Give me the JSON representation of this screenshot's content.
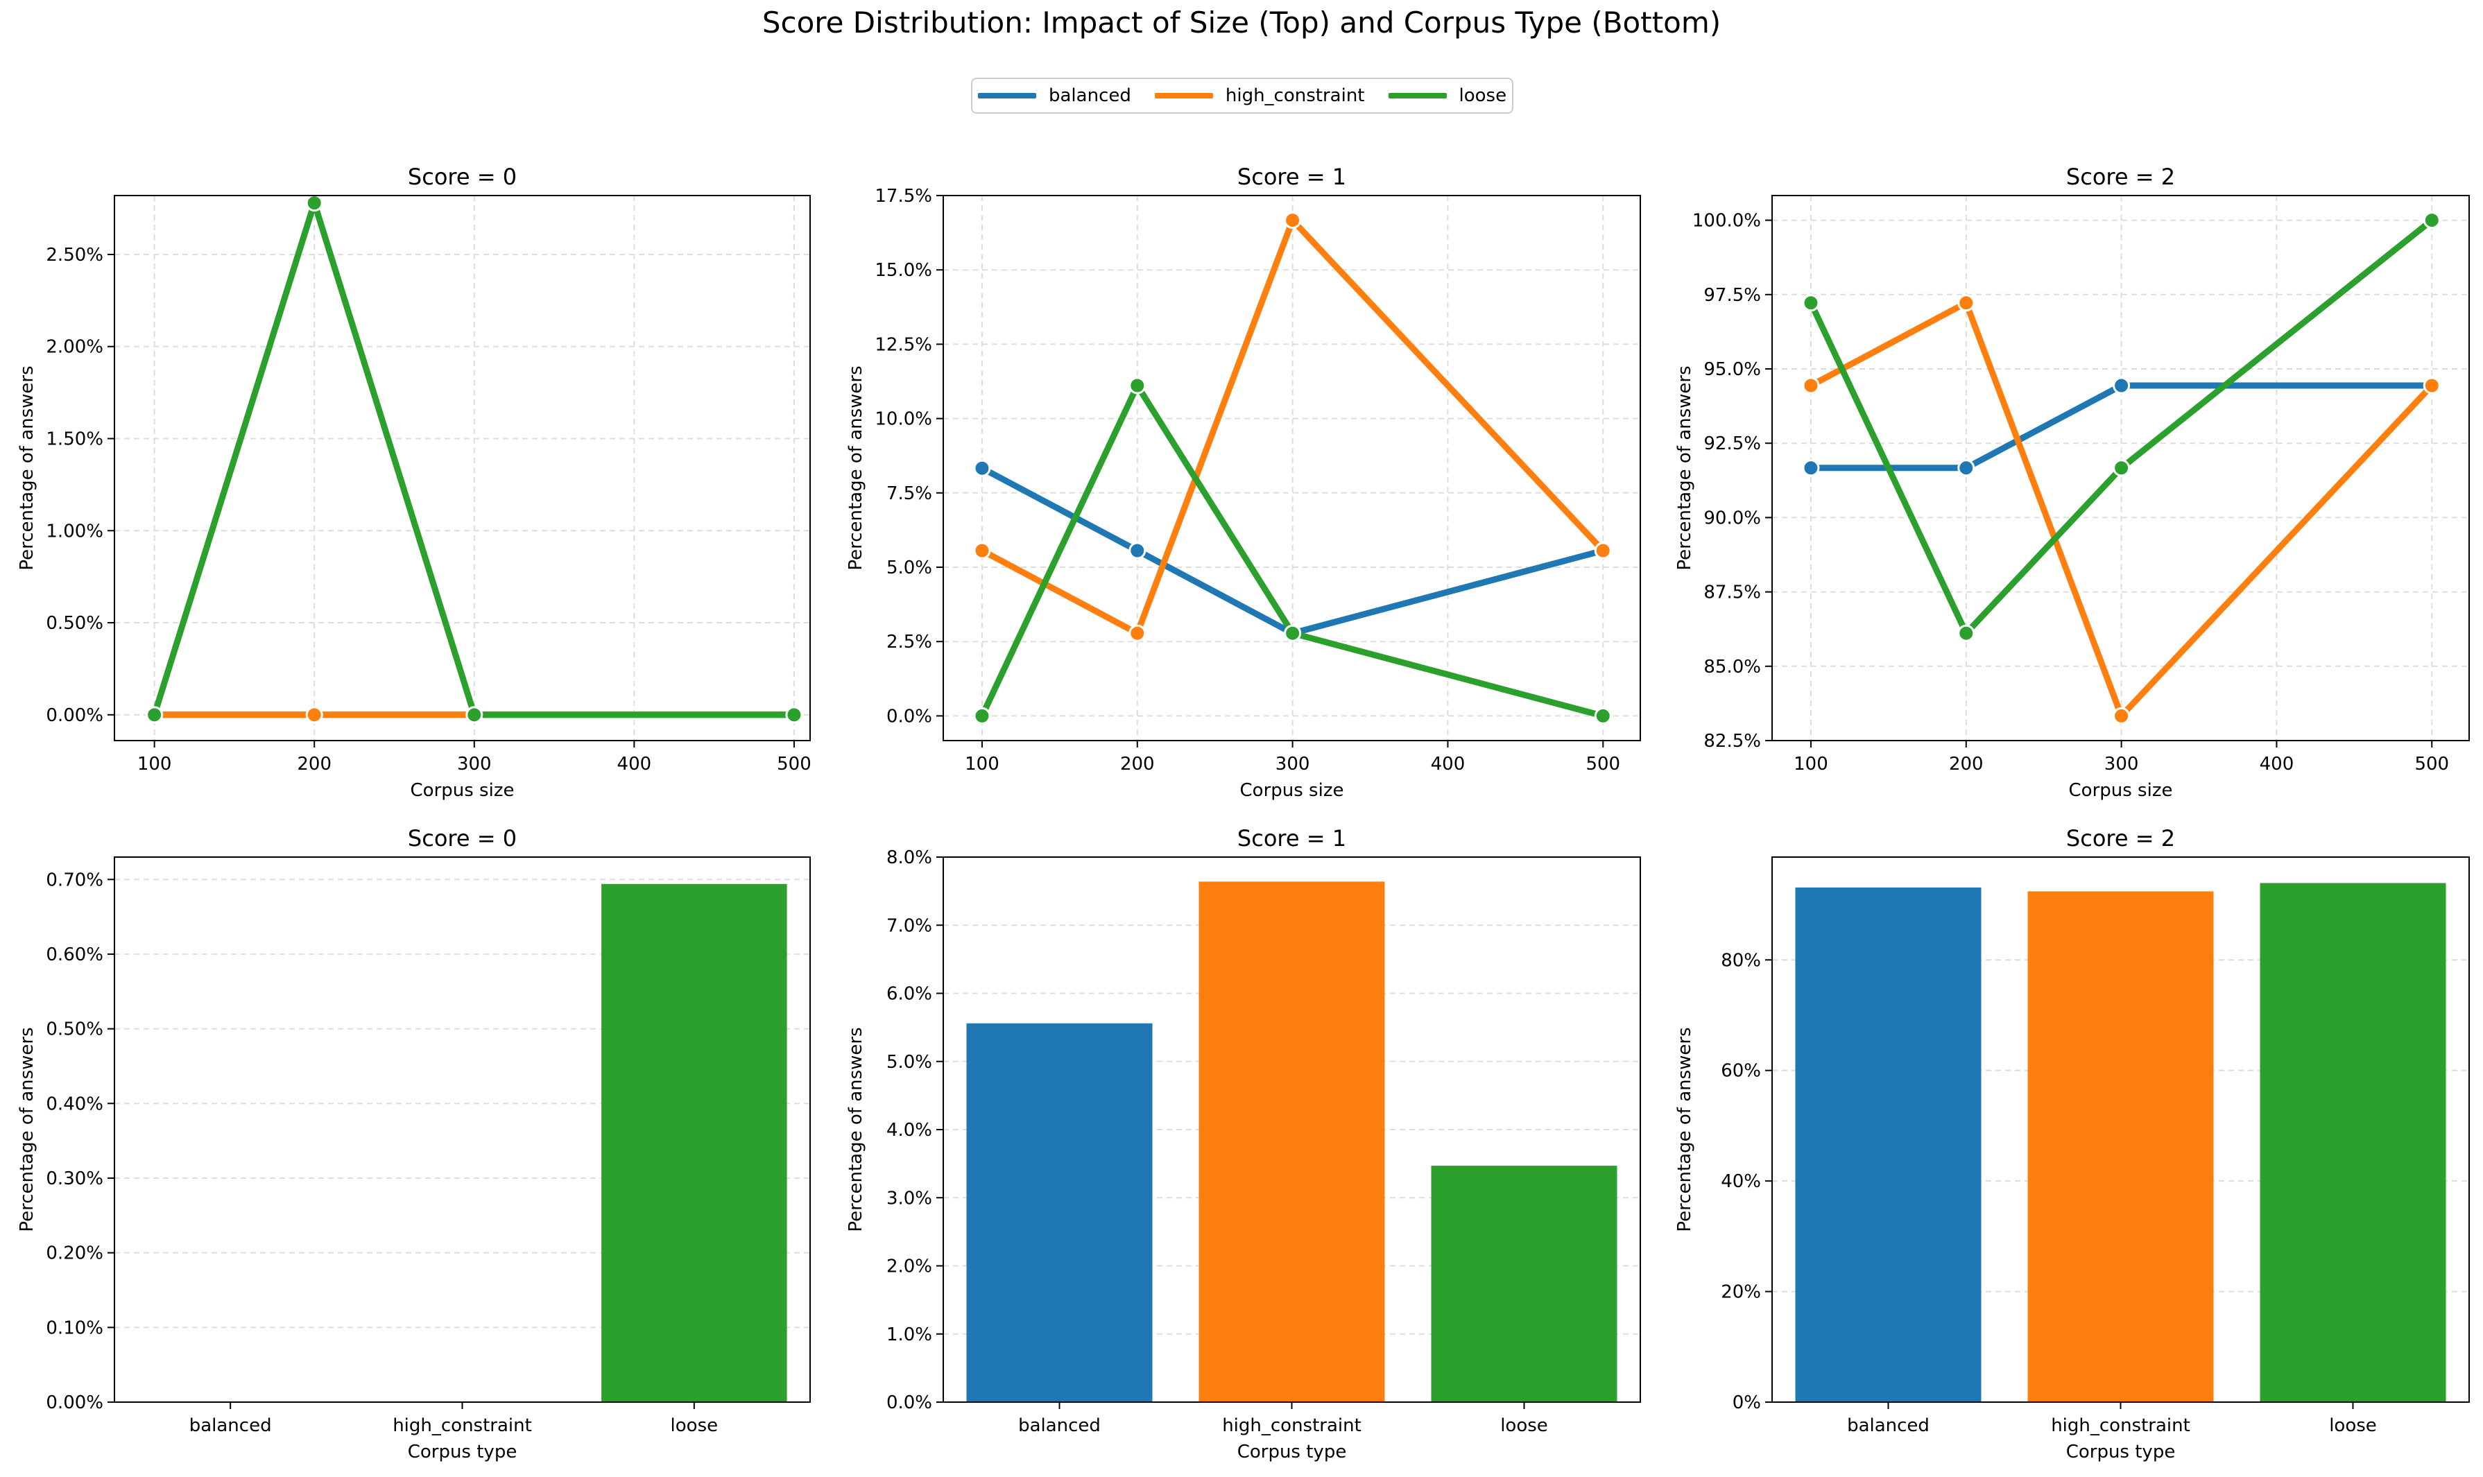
{
  "suptitle": "Score Distribution: Impact of Size (Top) and Corpus Type (Bottom)",
  "legend": [
    {
      "name": "balanced",
      "color": "#1f77b4"
    },
    {
      "name": "high_constraint",
      "color": "#ff7f0e"
    },
    {
      "name": "loose",
      "color": "#2ca02c"
    }
  ],
  "chart_data": [
    {
      "type": "line",
      "title": "Score = 0",
      "xlabel": "Corpus size",
      "ylabel": "Percentage of answers",
      "x": [
        100,
        200,
        300,
        500
      ],
      "xticks": [
        100,
        200,
        300,
        400,
        500
      ],
      "xticklabels": [
        "100",
        "200",
        "300",
        "400",
        "500"
      ],
      "xlim": [
        75,
        510
      ],
      "ylim": [
        -0.14,
        2.82
      ],
      "yticks": [
        0,
        0.5,
        1.0,
        1.5,
        2.0,
        2.5
      ],
      "yticklabels": [
        "0.00%",
        "0.50%",
        "1.00%",
        "1.50%",
        "2.00%",
        "2.50%"
      ],
      "grid": true,
      "series": [
        {
          "name": "balanced",
          "values": [
            0,
            0,
            0,
            0
          ]
        },
        {
          "name": "high_constraint",
          "values": [
            0,
            0,
            0,
            0
          ]
        },
        {
          "name": "loose",
          "values": [
            0,
            2.78,
            0,
            0
          ]
        }
      ]
    },
    {
      "type": "line",
      "title": "Score = 1",
      "xlabel": "Corpus size",
      "ylabel": "Percentage of answers",
      "x": [
        100,
        200,
        300,
        500
      ],
      "xticks": [
        100,
        200,
        300,
        400,
        500
      ],
      "xticklabels": [
        "100",
        "200",
        "300",
        "400",
        "500"
      ],
      "xlim": [
        75,
        524
      ],
      "ylim": [
        -0.83,
        17.5
      ],
      "yticks": [
        0,
        2.5,
        5.0,
        7.5,
        10.0,
        12.5,
        15.0,
        17.5
      ],
      "yticklabels": [
        "0.0%",
        "2.5%",
        "5.0%",
        "7.5%",
        "10.0%",
        "12.5%",
        "15.0%",
        "17.5%"
      ],
      "grid": true,
      "series": [
        {
          "name": "balanced",
          "values": [
            8.33,
            5.56,
            2.78,
            5.56
          ]
        },
        {
          "name": "high_constraint",
          "values": [
            5.56,
            2.78,
            16.67,
            5.56
          ]
        },
        {
          "name": "loose",
          "values": [
            0,
            11.11,
            2.78,
            0
          ]
        }
      ]
    },
    {
      "type": "line",
      "title": "Score = 2",
      "xlabel": "Corpus size",
      "ylabel": "Percentage of answers",
      "x": [
        100,
        200,
        300,
        500
      ],
      "xticks": [
        100,
        200,
        300,
        400,
        500
      ],
      "xticklabels": [
        "100",
        "200",
        "300",
        "400",
        "500"
      ],
      "xlim": [
        75,
        524
      ],
      "ylim": [
        82.5,
        100.83
      ],
      "yticks": [
        82.5,
        85.0,
        87.5,
        90.0,
        92.5,
        95.0,
        97.5,
        100.0
      ],
      "yticklabels": [
        "82.5%",
        "85.0%",
        "87.5%",
        "90.0%",
        "92.5%",
        "95.0%",
        "97.5%",
        "100.0%"
      ],
      "grid": true,
      "series": [
        {
          "name": "balanced",
          "values": [
            91.67,
            91.67,
            94.44,
            94.44
          ]
        },
        {
          "name": "high_constraint",
          "values": [
            94.44,
            97.22,
            83.33,
            94.44
          ]
        },
        {
          "name": "loose",
          "values": [
            97.22,
            86.11,
            91.67,
            100.0
          ]
        }
      ]
    },
    {
      "type": "bar",
      "title": "Score = 0",
      "xlabel": "Corpus type",
      "ylabel": "Percentage of answers",
      "categories": [
        "balanced",
        "high_constraint",
        "loose"
      ],
      "values": [
        0,
        0,
        0.694
      ],
      "colors": [
        "#1f77b4",
        "#ff7f0e",
        "#2ca02c"
      ],
      "ylim": [
        0,
        0.73
      ],
      "yticks": [
        0,
        0.1,
        0.2,
        0.3,
        0.4,
        0.5,
        0.6,
        0.7
      ],
      "yticklabels": [
        "0.00%",
        "0.10%",
        "0.20%",
        "0.30%",
        "0.40%",
        "0.50%",
        "0.60%",
        "0.70%"
      ],
      "grid": true
    },
    {
      "type": "bar",
      "title": "Score = 1",
      "xlabel": "Corpus type",
      "ylabel": "Percentage of answers",
      "categories": [
        "balanced",
        "high_constraint",
        "loose"
      ],
      "values": [
        5.56,
        7.64,
        3.47
      ],
      "colors": [
        "#1f77b4",
        "#ff7f0e",
        "#2ca02c"
      ],
      "ylim": [
        0,
        8.0
      ],
      "yticks": [
        0,
        1,
        2,
        3,
        4,
        5,
        6,
        7,
        8
      ],
      "yticklabels": [
        "0.0%",
        "1.0%",
        "2.0%",
        "3.0%",
        "4.0%",
        "5.0%",
        "6.0%",
        "7.0%",
        "8.0%"
      ],
      "grid": true
    },
    {
      "type": "bar",
      "title": "Score = 2",
      "xlabel": "Corpus type",
      "ylabel": "Percentage of answers",
      "categories": [
        "balanced",
        "high_constraint",
        "loose"
      ],
      "values": [
        93.1,
        92.4,
        93.9
      ],
      "colors": [
        "#1f77b4",
        "#ff7f0e",
        "#2ca02c"
      ],
      "ylim": [
        0,
        98.6
      ],
      "yticks": [
        0,
        20,
        40,
        60,
        80
      ],
      "yticklabels": [
        "0%",
        "20%",
        "40%",
        "60%",
        "80%"
      ],
      "grid": true
    }
  ]
}
